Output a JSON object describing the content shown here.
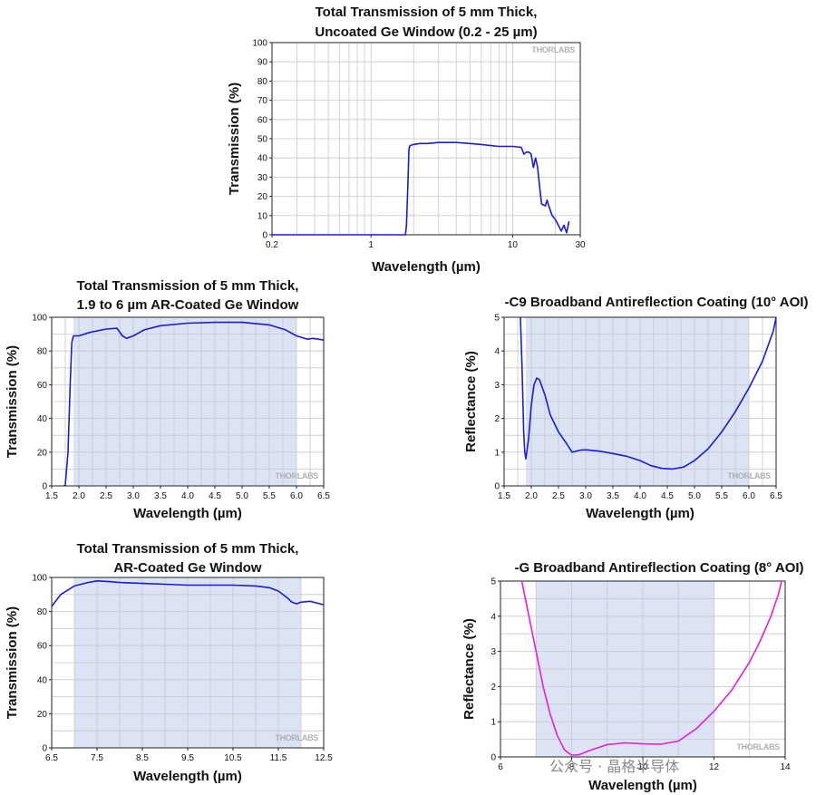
{
  "chart_data": [
    {
      "id": "uncoated",
      "type": "line",
      "xscale": "log",
      "title_lines": [
        "Total Transmission of 5 mm Thick,",
        "Uncoated Ge Window (0.2 - 25 µm)"
      ],
      "xlabel": "Wavelength (µm)",
      "ylabel": "Transmission (%)",
      "xlim": [
        0.2,
        30
      ],
      "ylim": [
        0,
        100
      ],
      "xticks": [
        0.2,
        1,
        10,
        30
      ],
      "xtick_labels": [
        "0.2",
        "1",
        "10",
        "30"
      ],
      "yticks": [
        0,
        10,
        20,
        30,
        40,
        50,
        60,
        70,
        80,
        90,
        100
      ],
      "grid": true,
      "shaded_band": null,
      "watermark": "THORLABS",
      "series": [
        {
          "name": "Transmission",
          "color": "#1c1cd6",
          "x": [
            0.2,
            1.0,
            1.75,
            1.78,
            1.82,
            1.85,
            1.87,
            1.9,
            2.0,
            2.2,
            2.5,
            3.0,
            4.0,
            5.0,
            6.0,
            8.0,
            10.0,
            11.5,
            12.0,
            12.5,
            13.0,
            13.5,
            14.0,
            14.5,
            15.0,
            15.5,
            16.0,
            16.5,
            17.0,
            17.5,
            18.0,
            19.0,
            20.0,
            21.0,
            22.0,
            23.0,
            24.0,
            25.0
          ],
          "y": [
            0,
            0,
            0,
            5,
            25,
            44,
            46,
            46.5,
            47,
            47.5,
            47.5,
            48,
            48,
            47.5,
            47,
            46,
            46,
            45.5,
            42,
            43,
            43,
            42,
            35,
            40,
            35,
            25,
            16,
            15.5,
            15,
            18,
            15,
            10,
            8,
            5,
            2,
            5,
            1,
            7
          ]
        }
      ]
    },
    {
      "id": "ar19to6",
      "type": "line",
      "xscale": "linear",
      "title_lines": [
        "Total Transmission of 5 mm Thick,",
        "1.9 to 6 µm AR-Coated Ge Window"
      ],
      "xlabel": "Wavelength (µm)",
      "ylabel": "Transmission (%)",
      "xlim": [
        1.5,
        6.5
      ],
      "ylim": [
        0,
        100
      ],
      "xticks": [
        1.5,
        2.0,
        2.5,
        3.0,
        3.5,
        4.0,
        4.5,
        5.0,
        5.5,
        6.0,
        6.5
      ],
      "xtick_labels": [
        "1.5",
        "2.0",
        "2.5",
        "3.0",
        "3.5",
        "4.0",
        "4.5",
        "5.0",
        "5.5",
        "6.0",
        "6.5"
      ],
      "yticks": [
        0,
        20,
        40,
        60,
        80,
        100
      ],
      "grid": true,
      "shaded_band": [
        1.9,
        6.0
      ],
      "watermark": "THORLABS",
      "series": [
        {
          "name": "Transmission",
          "color": "#1c1cd6",
          "x": [
            1.72,
            1.75,
            1.8,
            1.84,
            1.87,
            1.9,
            2.0,
            2.2,
            2.5,
            2.7,
            2.8,
            2.88,
            3.0,
            3.2,
            3.5,
            4.0,
            4.5,
            5.0,
            5.5,
            5.8,
            6.0,
            6.2,
            6.3,
            6.5
          ],
          "y": [
            0,
            0.5,
            20,
            60,
            85,
            89,
            89,
            91,
            93,
            93.5,
            89,
            87.5,
            89,
            92.5,
            95,
            96.5,
            97,
            97,
            95.5,
            92.5,
            89,
            87,
            87.5,
            86.5
          ]
        }
      ]
    },
    {
      "id": "c9",
      "type": "line",
      "xscale": "linear",
      "title_lines": [
        "-C9 Broadband Antireflection Coating (10° AOI)"
      ],
      "xlabel": "Wavelength (µm)",
      "ylabel": "Reflectance (%)",
      "xlim": [
        1.5,
        6.5
      ],
      "ylim": [
        0,
        5
      ],
      "xticks": [
        1.5,
        2.0,
        2.5,
        3.0,
        3.5,
        4.0,
        4.5,
        5.0,
        5.5,
        6.0,
        6.5
      ],
      "xtick_labels": [
        "1.5",
        "2.0",
        "2.5",
        "3.0",
        "3.5",
        "4.0",
        "4.5",
        "5.0",
        "5.5",
        "6.0",
        "6.5"
      ],
      "yticks": [
        0,
        1,
        2,
        3,
        4,
        5
      ],
      "grid": true,
      "shaded_band": [
        1.9,
        6.0
      ],
      "watermark": "THORLABS",
      "series": [
        {
          "name": "Reflectance",
          "color": "#1c1cd6",
          "x": [
            1.8,
            1.83,
            1.86,
            1.88,
            1.9,
            1.95,
            2.0,
            2.05,
            2.1,
            2.15,
            2.25,
            2.35,
            2.5,
            2.65,
            2.75,
            2.9,
            3.0,
            3.25,
            3.5,
            3.75,
            4.0,
            4.2,
            4.4,
            4.6,
            4.8,
            5.0,
            5.25,
            5.5,
            5.75,
            6.0,
            6.25,
            6.45,
            6.5
          ],
          "y": [
            5,
            3.5,
            1.6,
            1.0,
            0.8,
            1.4,
            2.4,
            3.0,
            3.2,
            3.15,
            2.7,
            2.1,
            1.6,
            1.25,
            1.0,
            1.06,
            1.07,
            1.03,
            0.96,
            0.88,
            0.75,
            0.6,
            0.52,
            0.5,
            0.56,
            0.75,
            1.1,
            1.6,
            2.2,
            2.9,
            3.7,
            4.6,
            5.0
          ]
        }
      ]
    },
    {
      "id": "ar-g",
      "type": "line",
      "xscale": "linear",
      "title_lines": [
        "Total Transmission of 5 mm Thick,",
        "AR-Coated Ge Window"
      ],
      "xlabel": "Wavelength (µm)",
      "ylabel": "Transmission (%)",
      "xlim": [
        6.5,
        12.5
      ],
      "ylim": [
        0,
        100
      ],
      "xticks": [
        6.5,
        7.5,
        8.5,
        9.5,
        10.5,
        11.5,
        12.5
      ],
      "xtick_labels": [
        "6.5",
        "7.5",
        "8.5",
        "9.5",
        "10.5",
        "11.5",
        "12.5"
      ],
      "yticks": [
        0,
        20,
        40,
        60,
        80,
        100
      ],
      "grid": true,
      "shaded_band": [
        7.0,
        12.0
      ],
      "watermark": "THORLABS",
      "series": [
        {
          "name": "Transmission",
          "color": "#1c1cd6",
          "x": [
            6.5,
            6.7,
            7.0,
            7.3,
            7.5,
            7.8,
            8.0,
            8.5,
            9.0,
            9.5,
            10.0,
            10.5,
            11.0,
            11.3,
            11.5,
            11.7,
            11.8,
            11.9,
            12.0,
            12.2,
            12.5
          ],
          "y": [
            83,
            90,
            95,
            97,
            98,
            97.5,
            97,
            96.5,
            96,
            95.5,
            95.5,
            95.5,
            95,
            94,
            92,
            88,
            85.5,
            84.5,
            85.5,
            86,
            84
          ]
        }
      ]
    },
    {
      "id": "g",
      "type": "line",
      "xscale": "linear",
      "title_lines": [
        "-G Broadband Antireflection Coating (8° AOI)"
      ],
      "xlabel": "Wavelength (µm)",
      "ylabel": "Reflectance (%)",
      "xlim": [
        6,
        14
      ],
      "ylim": [
        0,
        5
      ],
      "xticks": [
        6,
        8,
        10,
        12,
        14
      ],
      "xtick_labels": [
        "6",
        "8",
        "10",
        "12",
        "14"
      ],
      "yticks": [
        0,
        1,
        2,
        3,
        4,
        5
      ],
      "grid": true,
      "shaded_band": [
        7.0,
        12.0
      ],
      "watermark": "THORLABS",
      "series": [
        {
          "name": "Reflectance",
          "color": "#e020e0",
          "x": [
            6.6,
            6.8,
            7.0,
            7.2,
            7.4,
            7.6,
            7.8,
            8.0,
            8.2,
            8.5,
            9.0,
            9.5,
            10.0,
            10.5,
            11.0,
            11.5,
            12.0,
            12.5,
            13.0,
            13.3,
            13.6,
            13.8,
            13.9
          ],
          "y": [
            5.0,
            4.0,
            3.0,
            2.0,
            1.2,
            0.6,
            0.2,
            0.05,
            0.06,
            0.18,
            0.35,
            0.4,
            0.37,
            0.36,
            0.45,
            0.8,
            1.3,
            1.9,
            2.7,
            3.3,
            4.0,
            4.6,
            5.0
          ]
        }
      ]
    }
  ],
  "overlay": {
    "caption": "公众号 · 晶格半导体"
  }
}
